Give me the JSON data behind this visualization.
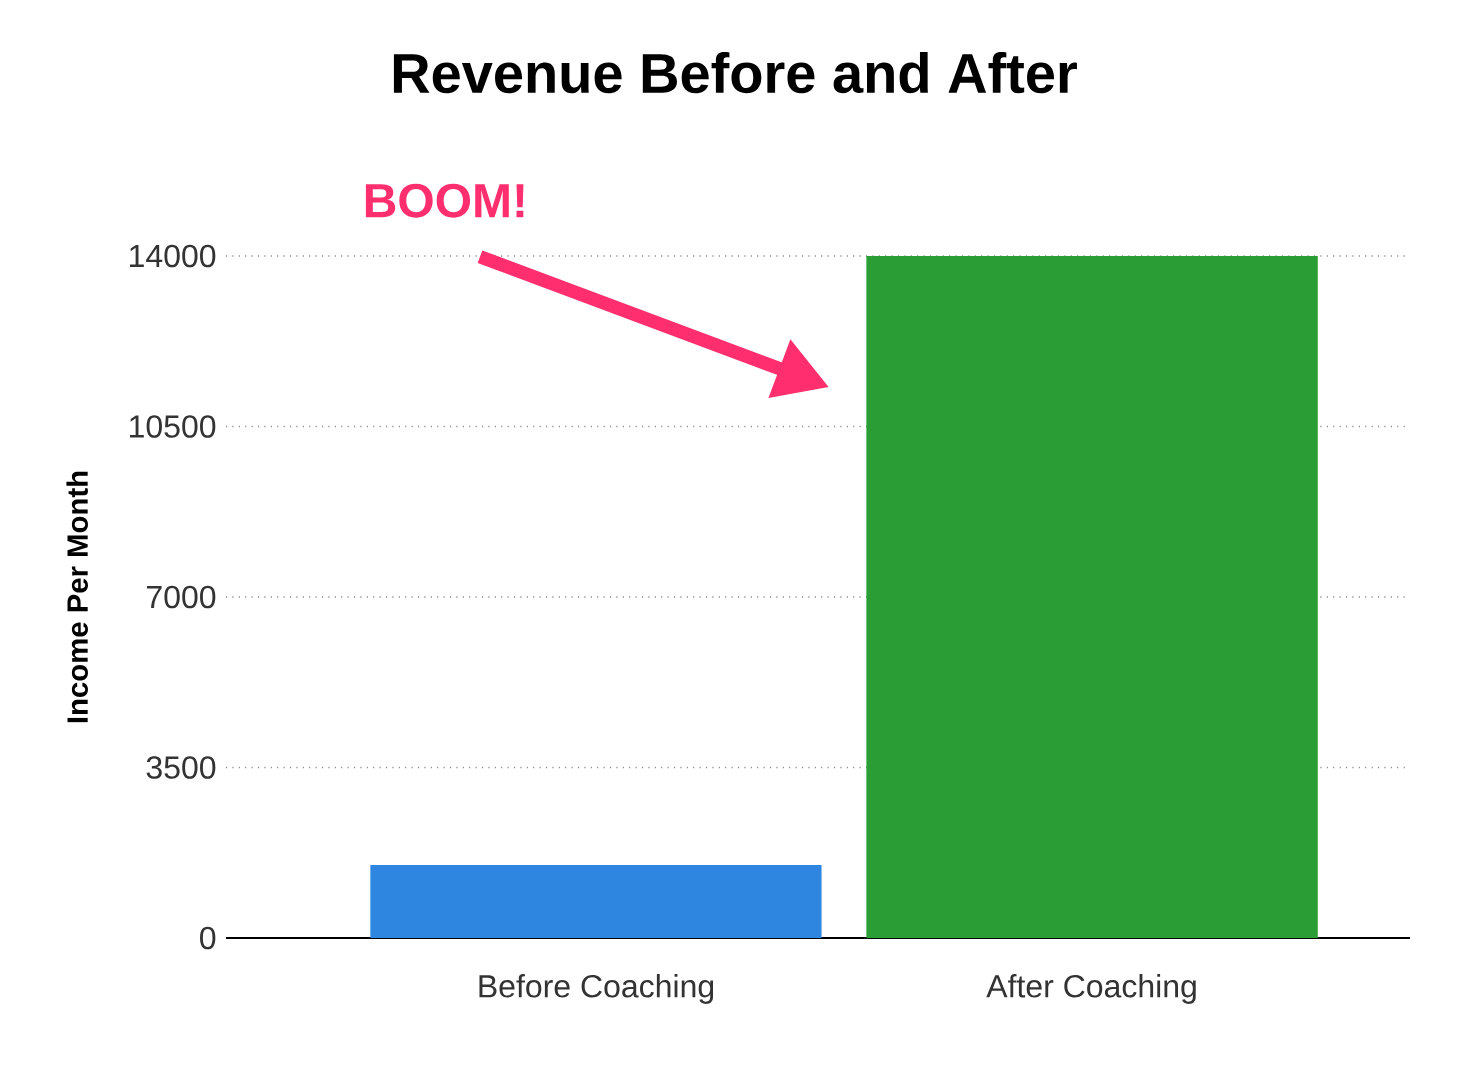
{
  "chart_data": {
    "type": "bar",
    "title": "Revenue Before and After",
    "ylabel": "Income Per Month",
    "categories": [
      "Before Coaching",
      "After Coaching"
    ],
    "values": [
      1500,
      14000
    ],
    "colors": [
      "#2f86e0",
      "#2a9e34"
    ],
    "ylim": [
      0,
      14000
    ],
    "yticks": [
      0,
      3500,
      7000,
      10500,
      14000
    ],
    "grid": "y",
    "annotations": [
      "BOOM!"
    ]
  }
}
